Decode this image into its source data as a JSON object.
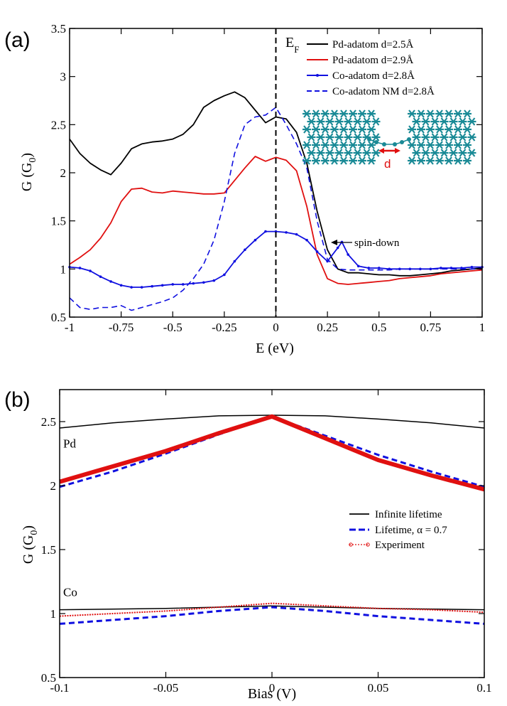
{
  "chart_data": [
    {
      "id": "a",
      "panel_label": "(a)",
      "type": "line",
      "xlabel": "E (eV)",
      "ylabel": "G (G",
      "ylabel_sub": "0",
      "ylabel_close": ")",
      "xlim": [
        -1,
        1
      ],
      "ylim": [
        0.5,
        3.5
      ],
      "xticks": [
        -1,
        -0.75,
        -0.5,
        -0.25,
        0,
        0.25,
        0.5,
        0.75,
        1
      ],
      "xtick_labels": [
        "-1",
        "-0.75",
        "-0.5",
        "-0.25",
        "0",
        "0.25",
        "0.5",
        "0.75",
        "1"
      ],
      "yticks": [
        0.5,
        1,
        1.5,
        2,
        2.5,
        3,
        3.5
      ],
      "ytick_labels": [
        "0.5",
        "1",
        "1.5",
        "2",
        "2.5",
        "3",
        "3.5"
      ],
      "fermi_label": "E",
      "fermi_sub": "F",
      "annotation": "spin-down",
      "annotation_target": [
        0.32,
        1.28
      ],
      "inset_label": "d",
      "legend_position": "top-right",
      "series": [
        {
          "name": "Pd-adatom d=2.5Å",
          "color": "#000000",
          "style": "solid",
          "marker": false,
          "x": [
            -1,
            -0.95,
            -0.9,
            -0.85,
            -0.8,
            -0.75,
            -0.7,
            -0.65,
            -0.6,
            -0.55,
            -0.5,
            -0.45,
            -0.4,
            -0.35,
            -0.3,
            -0.25,
            -0.2,
            -0.15,
            -0.1,
            -0.05,
            0,
            0.05,
            0.1,
            0.15,
            0.2,
            0.25,
            0.3,
            0.35,
            0.4,
            0.45,
            0.5,
            0.55,
            0.6,
            0.65,
            0.7,
            0.75,
            0.8,
            0.85,
            0.9,
            0.95,
            1
          ],
          "y": [
            2.35,
            2.2,
            2.1,
            2.03,
            1.98,
            2.1,
            2.25,
            2.3,
            2.32,
            2.33,
            2.35,
            2.4,
            2.5,
            2.68,
            2.75,
            2.8,
            2.84,
            2.78,
            2.65,
            2.52,
            2.58,
            2.56,
            2.42,
            2.1,
            1.6,
            1.2,
            1.0,
            0.96,
            0.96,
            0.95,
            0.94,
            0.94,
            0.93,
            0.93,
            0.94,
            0.95,
            0.96,
            0.98,
            0.99,
            1.0,
            1.01
          ]
        },
        {
          "name": "Pd-adatom d=2.9Å",
          "color": "#e01010",
          "style": "solid",
          "marker": false,
          "x": [
            -1,
            -0.95,
            -0.9,
            -0.85,
            -0.8,
            -0.75,
            -0.7,
            -0.65,
            -0.6,
            -0.55,
            -0.5,
            -0.45,
            -0.4,
            -0.35,
            -0.3,
            -0.25,
            -0.2,
            -0.15,
            -0.1,
            -0.05,
            0,
            0.05,
            0.1,
            0.15,
            0.2,
            0.25,
            0.3,
            0.35,
            0.4,
            0.45,
            0.5,
            0.55,
            0.6,
            0.65,
            0.7,
            0.75,
            0.8,
            0.85,
            0.9,
            0.95,
            1
          ],
          "y": [
            1.05,
            1.12,
            1.2,
            1.32,
            1.48,
            1.7,
            1.83,
            1.84,
            1.8,
            1.79,
            1.81,
            1.8,
            1.79,
            1.78,
            1.78,
            1.79,
            1.92,
            2.05,
            2.17,
            2.12,
            2.16,
            2.13,
            2.02,
            1.65,
            1.15,
            0.9,
            0.85,
            0.84,
            0.85,
            0.86,
            0.87,
            0.88,
            0.9,
            0.91,
            0.92,
            0.93,
            0.95,
            0.96,
            0.97,
            0.98,
            0.99
          ]
        },
        {
          "name": "Co-adatom d=2.8Å",
          "color": "#1010e0",
          "style": "solid",
          "marker": true,
          "x": [
            -1,
            -0.95,
            -0.9,
            -0.85,
            -0.8,
            -0.75,
            -0.7,
            -0.65,
            -0.6,
            -0.55,
            -0.5,
            -0.45,
            -0.4,
            -0.35,
            -0.3,
            -0.25,
            -0.2,
            -0.15,
            -0.1,
            -0.05,
            0,
            0.05,
            0.1,
            0.15,
            0.2,
            0.25,
            0.3,
            0.32,
            0.35,
            0.4,
            0.45,
            0.5,
            0.55,
            0.6,
            0.65,
            0.7,
            0.75,
            0.8,
            0.85,
            0.9,
            0.95,
            1
          ],
          "y": [
            1.02,
            1.01,
            0.98,
            0.92,
            0.87,
            0.83,
            0.81,
            0.81,
            0.82,
            0.83,
            0.84,
            0.84,
            0.85,
            0.86,
            0.88,
            0.94,
            1.08,
            1.2,
            1.3,
            1.39,
            1.39,
            1.38,
            1.36,
            1.3,
            1.18,
            1.08,
            1.22,
            1.28,
            1.15,
            1.03,
            1.01,
            1.01,
            1.0,
            1.0,
            1.0,
            1.0,
            1.0,
            1.01,
            1.01,
            1.01,
            1.02,
            1.02
          ]
        },
        {
          "name": "Co-adatom NM d=2.8Å",
          "color": "#1010e0",
          "style": "dashed",
          "marker": false,
          "x": [
            -1,
            -0.95,
            -0.9,
            -0.85,
            -0.8,
            -0.75,
            -0.7,
            -0.65,
            -0.6,
            -0.55,
            -0.5,
            -0.45,
            -0.4,
            -0.35,
            -0.3,
            -0.25,
            -0.2,
            -0.15,
            -0.1,
            -0.05,
            0,
            0.05,
            0.1,
            0.15,
            0.2,
            0.25,
            0.3,
            0.35,
            0.4,
            0.45,
            0.5,
            0.55,
            0.6,
            0.65,
            0.7,
            0.75,
            0.8,
            0.85,
            0.9,
            0.95,
            1
          ],
          "y": [
            0.7,
            0.6,
            0.58,
            0.6,
            0.6,
            0.62,
            0.57,
            0.6,
            0.63,
            0.66,
            0.7,
            0.78,
            0.9,
            1.05,
            1.3,
            1.7,
            2.2,
            2.5,
            2.58,
            2.6,
            2.68,
            2.5,
            2.3,
            2.05,
            1.5,
            1.1,
            1.0,
            0.99,
            0.99,
            0.99,
            0.99,
            0.99,
            1.0,
            1.0,
            1.0,
            1.0,
            1.0,
            1.0,
            1.0,
            1.0,
            1.0
          ]
        }
      ]
    },
    {
      "id": "b",
      "panel_label": "(b)",
      "type": "line",
      "xlabel": "Bias (V)",
      "ylabel": "G (G",
      "ylabel_sub": "0",
      "ylabel_close": ")",
      "xlim": [
        -0.1,
        0.1
      ],
      "ylim": [
        0.5,
        2.75
      ],
      "xticks": [
        -0.1,
        -0.05,
        0,
        0.05,
        0.1
      ],
      "xtick_labels": [
        "-0.1",
        "-0.05",
        "0",
        "0.05",
        "0.1"
      ],
      "yticks": [
        0.5,
        1,
        1.5,
        2,
        2.5
      ],
      "ytick_labels": [
        "0.5",
        "1",
        "1.5",
        "2",
        "2.5"
      ],
      "curve_labels": [
        {
          "text": "Pd",
          "x": -0.099,
          "y": 2.33
        },
        {
          "text": "Co",
          "x": -0.099,
          "y": 1.17
        }
      ],
      "legend_position": "right",
      "legend": [
        {
          "name": "Infinite lifetime",
          "color": "#000000",
          "style": "solid"
        },
        {
          "name": "Lifetime,  α = 0.7",
          "color": "#1010e0",
          "style": "dashed"
        },
        {
          "name": "Experiment",
          "color": "#e01010",
          "style": "dotted-marker"
        }
      ],
      "series": [
        {
          "name": "Infinite lifetime Pd",
          "color": "#000000",
          "style": "solid",
          "x": [
            -0.1,
            -0.075,
            -0.05,
            -0.025,
            0,
            0.025,
            0.05,
            0.075,
            0.1
          ],
          "y": [
            2.45,
            2.49,
            2.52,
            2.545,
            2.55,
            2.545,
            2.52,
            2.49,
            2.45
          ]
        },
        {
          "name": "Lifetime Pd",
          "color": "#1010e0",
          "style": "dashed",
          "x": [
            -0.1,
            -0.075,
            -0.05,
            -0.025,
            0,
            0.025,
            0.05,
            0.075,
            0.1
          ],
          "y": [
            1.99,
            2.11,
            2.25,
            2.4,
            2.54,
            2.39,
            2.24,
            2.11,
            1.99
          ]
        },
        {
          "name": "Experiment Pd",
          "color": "#e01010",
          "style": "thick",
          "x": [
            -0.1,
            -0.075,
            -0.05,
            -0.025,
            0,
            0.025,
            0.05,
            0.075,
            0.1
          ],
          "y": [
            2.03,
            2.15,
            2.27,
            2.41,
            2.54,
            2.37,
            2.2,
            2.08,
            1.97
          ]
        },
        {
          "name": "Infinite lifetime Co",
          "color": "#000000",
          "style": "solid",
          "x": [
            -0.1,
            -0.05,
            0,
            0.05,
            0.1
          ],
          "y": [
            1.03,
            1.04,
            1.06,
            1.04,
            1.03
          ]
        },
        {
          "name": "Lifetime Co",
          "color": "#1010e0",
          "style": "dashed",
          "x": [
            -0.1,
            -0.075,
            -0.05,
            -0.025,
            0,
            0.025,
            0.05,
            0.075,
            0.1
          ],
          "y": [
            0.92,
            0.95,
            0.98,
            1.02,
            1.05,
            1.02,
            0.98,
            0.95,
            0.92
          ]
        },
        {
          "name": "Experiment Co",
          "color": "#e01010",
          "style": "dotted",
          "x": [
            -0.1,
            -0.075,
            -0.05,
            -0.025,
            0,
            0.025,
            0.05,
            0.075,
            0.1
          ],
          "y": [
            0.98,
            1.0,
            1.02,
            1.05,
            1.08,
            1.06,
            1.04,
            1.03,
            1.01
          ]
        }
      ]
    }
  ]
}
